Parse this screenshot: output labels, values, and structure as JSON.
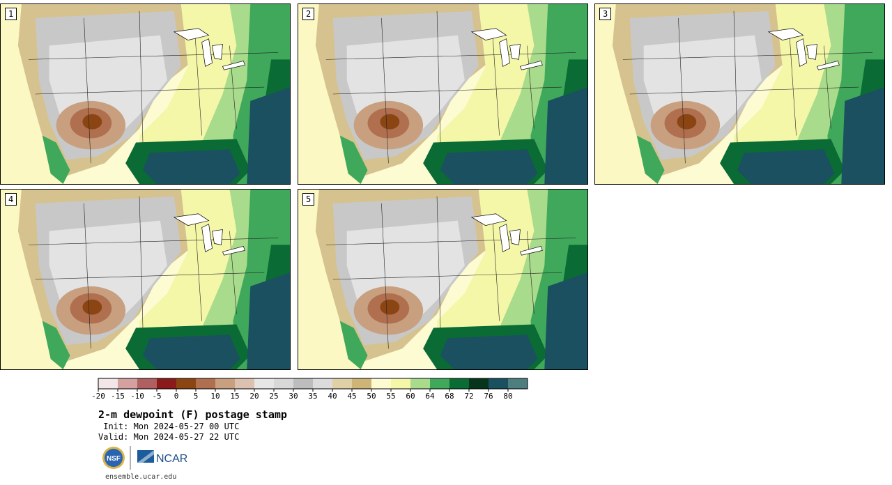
{
  "panels": [
    {
      "label": "1"
    },
    {
      "label": "2"
    },
    {
      "label": "3"
    },
    {
      "label": "4"
    },
    {
      "label": "5"
    }
  ],
  "colorbar": {
    "colors": [
      "#f3e6e6",
      "#d4a0a0",
      "#b06060",
      "#8b1a1a",
      "#8b4513",
      "#b07050",
      "#c8a080",
      "#dcc0b0",
      "#e6e6e6",
      "#d8d8d8",
      "#bdbdbd",
      "#dcdcdc",
      "#e0d0a8",
      "#cfb478",
      "#fdfbd2",
      "#f4f7a8",
      "#a8dc8c",
      "#3fa85a",
      "#0a6b35",
      "#06351c",
      "#1a5060",
      "#4e7f80"
    ],
    "ticks": [
      "-20",
      "-15",
      "-10",
      "-5",
      "0",
      "5",
      "10",
      "15",
      "20",
      "25",
      "30",
      "35",
      "40",
      "45",
      "50",
      "55",
      "60",
      "64",
      "68",
      "72",
      "76",
      "80"
    ]
  },
  "title": "2-m dewpoint (F) postage stamp",
  "init": " Init: Mon 2024-05-27 00 UTC",
  "valid": "Valid: Mon 2024-05-27 22 UTC",
  "footer_url": "ensemble.ucar.edu",
  "logos": {
    "nsf": "NSF",
    "ncar": "NCAR"
  }
}
